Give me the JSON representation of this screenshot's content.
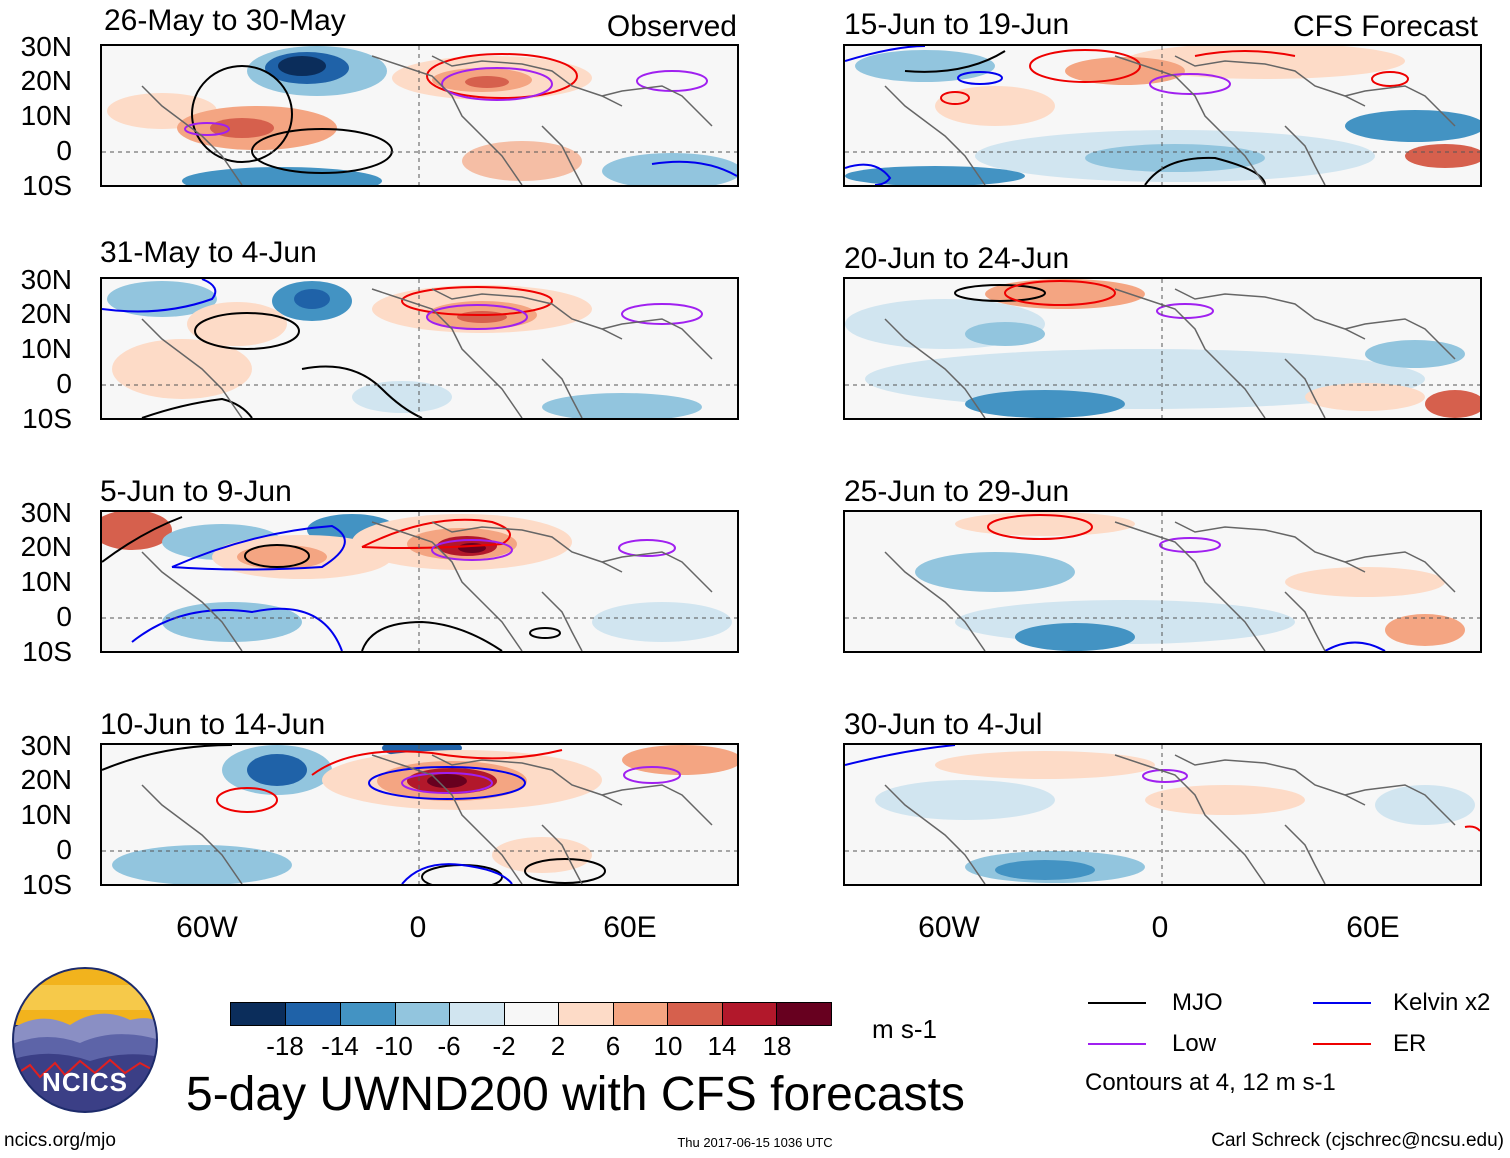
{
  "observed_tag": "Observed",
  "forecast_tag": "CFS Forecast",
  "panels": [
    {
      "label": "26-May to 30-May"
    },
    {
      "label": "31-May to 4-Jun"
    },
    {
      "label": "5-Jun to 9-Jun"
    },
    {
      "label": "10-Jun to 14-Jun"
    },
    {
      "label": "15-Jun to 19-Jun"
    },
    {
      "label": "20-Jun to 24-Jun"
    },
    {
      "label": "25-Jun to 29-Jun"
    },
    {
      "label": "30-Jun to 4-Jul"
    }
  ],
  "lat_ticks": [
    "30N",
    "20N",
    "10N",
    "0",
    "10S"
  ],
  "lon_ticks": [
    "60W",
    "0",
    "60E"
  ],
  "colorbar": {
    "ticks": [
      "-18",
      "-14",
      "-10",
      "-6",
      "-2",
      "2",
      "6",
      "10",
      "14",
      "18"
    ],
    "colors": [
      "#0b2d5b",
      "#1f62a8",
      "#4393c3",
      "#92c5de",
      "#d1e5f0",
      "#f7f7f7",
      "#fddbc7",
      "#f4a582",
      "#d6604d",
      "#b2182b",
      "#67001f"
    ],
    "units": "m s-1"
  },
  "legend": {
    "items": [
      {
        "label": "MJO",
        "color": "#000000"
      },
      {
        "label": "Kelvin x2",
        "color": "#0000ee"
      },
      {
        "label": "Low",
        "color": "#a020f0"
      },
      {
        "label": "ER",
        "color": "#ee0000"
      }
    ],
    "note": "Contours at 4, 12 m s-1"
  },
  "logo": {
    "text": "NCICS"
  },
  "main_title": "5-day UWND200 with CFS forecasts",
  "footer": {
    "left": "ncics.org/mjo",
    "center": "Thu 2017-06-15 1036 UTC",
    "right": "Carl Schreck (cjschrec@ncsu.edu)"
  }
}
